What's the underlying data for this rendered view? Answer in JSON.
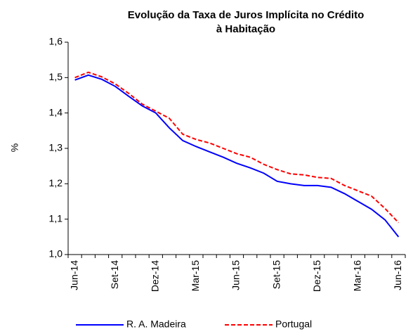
{
  "chart_data": {
    "type": "line",
    "title": "Evolução da Taxa de Juros Implícita no Crédito à Habitação",
    "y_label": "%",
    "categories": [
      "Jun-14",
      null,
      null,
      "Set-14",
      null,
      null,
      "Dez-14",
      null,
      null,
      "Mar-15",
      null,
      null,
      "Jun-15",
      null,
      null,
      "Set-15",
      null,
      null,
      "Dez-15",
      null,
      null,
      "Mar-16",
      null,
      null,
      "Jun-16"
    ],
    "series": [
      {
        "name": "R. A. Madeira",
        "color": "#0000ff",
        "dash": "solid",
        "values": [
          1.493,
          1.507,
          1.495,
          1.475,
          1.447,
          1.42,
          1.4,
          1.358,
          1.322,
          1.305,
          1.29,
          1.275,
          1.258,
          1.245,
          1.23,
          1.207,
          1.2,
          1.195,
          1.195,
          1.19,
          1.172,
          1.15,
          1.128,
          1.098,
          1.05
        ]
      },
      {
        "name": "Portugal",
        "color": "#ff0000",
        "dash": "dashed",
        "values": [
          1.5,
          1.515,
          1.502,
          1.482,
          1.455,
          1.425,
          1.405,
          1.385,
          1.34,
          1.325,
          1.315,
          1.3,
          1.285,
          1.275,
          1.255,
          1.24,
          1.228,
          1.225,
          1.218,
          1.215,
          1.195,
          1.18,
          1.165,
          1.13,
          1.09
        ]
      }
    ],
    "ylim": [
      1.0,
      1.6
    ],
    "yticks": [
      {
        "value": 1.0,
        "label": "1,0"
      },
      {
        "value": 1.1,
        "label": "1,1"
      },
      {
        "value": 1.2,
        "label": "1,2"
      },
      {
        "value": 1.3,
        "label": "1,3"
      },
      {
        "value": 1.4,
        "label": "1,4"
      },
      {
        "value": 1.5,
        "label": "1,5"
      },
      {
        "value": 1.6,
        "label": "1,6"
      }
    ],
    "grid": false,
    "legend": "bottom"
  }
}
